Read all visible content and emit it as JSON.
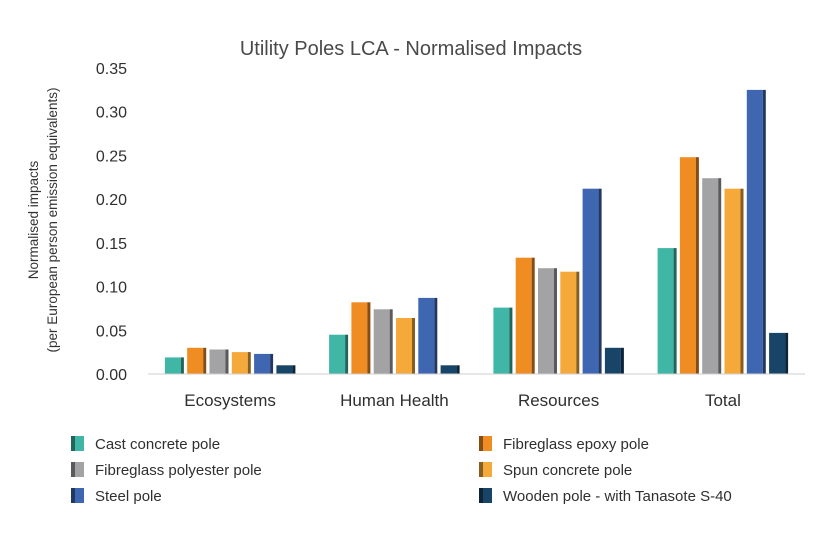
{
  "chart_data": {
    "type": "bar",
    "title": "Utility Poles LCA - Normalised Impacts",
    "ylabel_line1": "Normalised impacts",
    "ylabel_line2": "(per European person emission equivalents)",
    "xlabel": "",
    "ylim": [
      0,
      0.35
    ],
    "yticks": [
      "0.00",
      "0.05",
      "0.10",
      "0.15",
      "0.20",
      "0.25",
      "0.30",
      "0.35"
    ],
    "categories": [
      "Ecosystems",
      "Human Health",
      "Resources",
      "Total"
    ],
    "series": [
      {
        "name": "Cast concrete pole",
        "color": "#3fb6a6",
        "values": [
          0.019,
          0.045,
          0.076,
          0.144
        ]
      },
      {
        "name": "Fibreglass epoxy pole",
        "color": "#ef8c22",
        "values": [
          0.03,
          0.082,
          0.133,
          0.248
        ]
      },
      {
        "name": "Fibreglass polyester pole",
        "color": "#a3a3a5",
        "values": [
          0.028,
          0.074,
          0.121,
          0.224
        ]
      },
      {
        "name": "Spun concrete pole",
        "color": "#f5a93a",
        "values": [
          0.025,
          0.064,
          0.117,
          0.212
        ]
      },
      {
        "name": "Steel pole",
        "color": "#3e66b1",
        "values": [
          0.023,
          0.087,
          0.212,
          0.325
        ]
      },
      {
        "name": "Wooden pole - with Tanasote S-40",
        "color": "#174467",
        "values": [
          0.01,
          0.01,
          0.03,
          0.047
        ]
      }
    ],
    "legend_position": "bottom",
    "grid": false
  }
}
